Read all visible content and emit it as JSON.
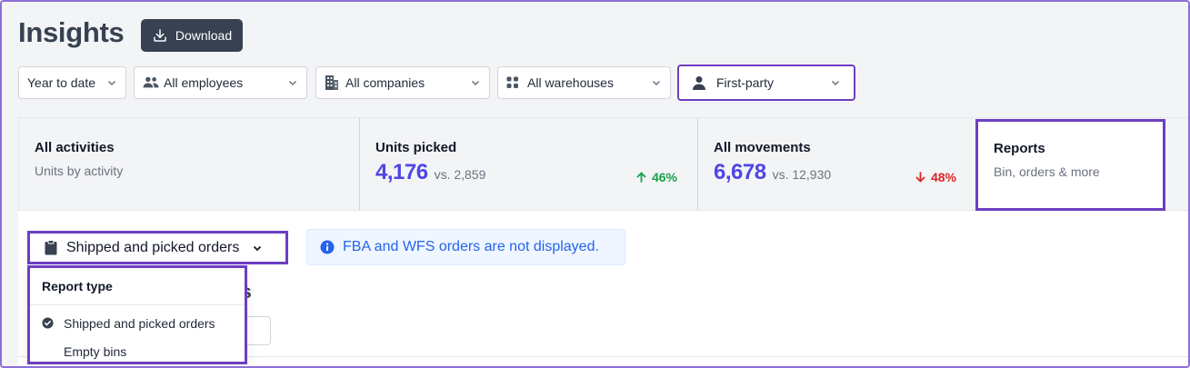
{
  "header": {
    "title": "Insights",
    "download_label": "Download"
  },
  "filters": [
    {
      "label": "Year to date",
      "icon": "none"
    },
    {
      "label": "All employees",
      "icon": "users-icon"
    },
    {
      "label": "All companies",
      "icon": "building-icon"
    },
    {
      "label": "All warehouses",
      "icon": "grid-icon"
    },
    {
      "label": "First-party",
      "icon": "person-icon"
    }
  ],
  "cards": {
    "activities": {
      "title": "All activities",
      "subtitle": "Units by activity"
    },
    "units_picked": {
      "title": "Units picked",
      "value": "4,176",
      "compare": "vs. 2,859",
      "delta": "46%",
      "direction": "up"
    },
    "movements": {
      "title": "All movements",
      "value": "6,678",
      "compare": "vs. 12,930",
      "delta": "48%",
      "direction": "down"
    },
    "reports": {
      "title": "Reports",
      "subtitle": "Bin, orders & more"
    }
  },
  "report_select": {
    "label": "Shipped and picked orders"
  },
  "info_banner": {
    "text": "FBA and WFS orders are not displayed."
  },
  "partially_hidden": {
    "heading_fragment": "rs"
  },
  "dropdown": {
    "header": "Report type",
    "options": [
      {
        "label": "Shipped and picked orders",
        "selected": true
      },
      {
        "label": "Empty bins",
        "selected": false
      }
    ]
  },
  "colors": {
    "accent": "#4f46e5",
    "highlight": "#6d3fc0",
    "up": "#16a34a",
    "down": "#dc2626",
    "info": "#2563eb"
  }
}
